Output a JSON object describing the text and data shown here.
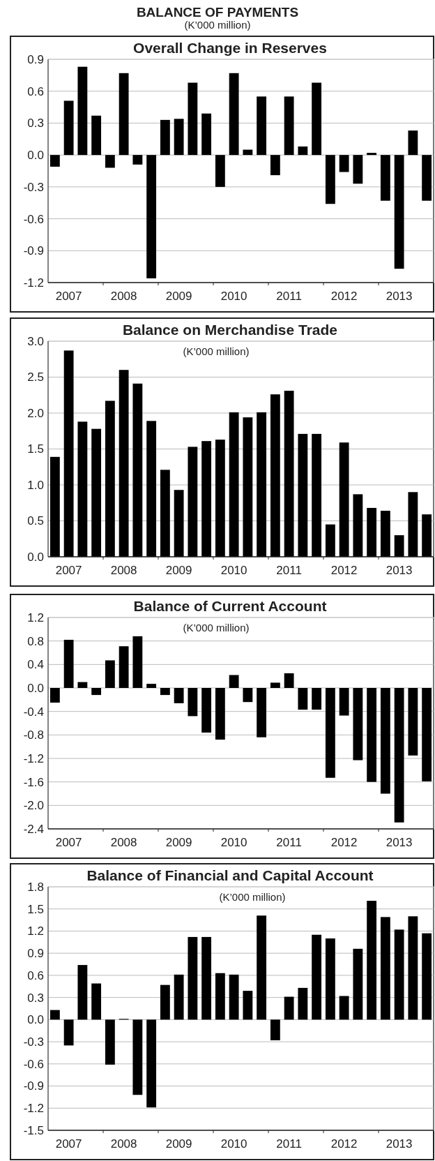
{
  "chart_data": [
    {
      "type": "bar",
      "title": "Overall Change in Reserves",
      "annotations": [
        "BALANCE OF PAYMENTS",
        "(K’000 million)"
      ],
      "categories": [
        null,
        "2007",
        null,
        null,
        null,
        "2008",
        null,
        null,
        null,
        "2009",
        null,
        null,
        null,
        "2010",
        null,
        null,
        null,
        "2011",
        null,
        null,
        null,
        "2012",
        null,
        null,
        null,
        "2013",
        null,
        null
      ],
      "values": [
        -0.11,
        0.51,
        0.83,
        0.37,
        -0.12,
        0.77,
        -0.09,
        -1.16,
        0.33,
        0.34,
        0.68,
        0.39,
        -0.3,
        0.77,
        0.05,
        0.55,
        -0.19,
        0.55,
        0.08,
        0.68,
        -0.46,
        -0.16,
        -0.27,
        0.02,
        -0.43,
        -1.07,
        0.23,
        -0.43
      ],
      "color": "#000000",
      "ylim": [
        -1.2,
        0.9
      ],
      "yticks": [
        -1.2,
        -0.9,
        -0.6,
        -0.3,
        {
          "value": 0,
          "label": "0.0"
        },
        0.3,
        0.6,
        0.9
      ],
      "grid": "y"
    },
    {
      "type": "bar",
      "title": "Balance on Merchandise Trade",
      "subtitle": "(K’000 million)",
      "categories": [
        null,
        "2007",
        null,
        null,
        null,
        "2008",
        null,
        null,
        null,
        "2009",
        null,
        null,
        null,
        "2010",
        null,
        null,
        null,
        "2011",
        null,
        null,
        null,
        "2012",
        null,
        null,
        null,
        "2013",
        null,
        null
      ],
      "values": [
        1.39,
        2.87,
        1.88,
        1.78,
        2.17,
        2.6,
        2.41,
        1.89,
        1.21,
        0.93,
        1.53,
        1.61,
        1.63,
        2.01,
        1.94,
        2.01,
        2.26,
        2.31,
        1.71,
        1.71,
        0.45,
        1.59,
        0.87,
        0.68,
        0.64,
        0.3,
        0.9,
        0.59
      ],
      "color": "#000000",
      "ylim": [
        0,
        3
      ],
      "yticks": [
        {
          "value": 0,
          "label": "0.0"
        },
        0.5,
        {
          "value": 1,
          "label": "1.0"
        },
        1.5,
        {
          "value": 2,
          "label": "2.0"
        },
        2.5,
        {
          "value": 3,
          "label": "3.0"
        }
      ],
      "grid": "y"
    },
    {
      "type": "bar",
      "title": "Balance of Current Account",
      "subtitle": "(K’000 million)",
      "categories": [
        null,
        "2007",
        null,
        null,
        null,
        "2008",
        null,
        null,
        null,
        "2009",
        null,
        null,
        null,
        "2010",
        null,
        null,
        null,
        "2011",
        null,
        null,
        null,
        "2012",
        null,
        null,
        null,
        "2013",
        null,
        null
      ],
      "values": [
        -0.25,
        0.82,
        0.1,
        -0.12,
        0.47,
        0.71,
        0.88,
        0.07,
        -0.12,
        -0.26,
        -0.48,
        -0.76,
        -0.88,
        0.22,
        -0.24,
        -0.84,
        0.09,
        0.25,
        -0.37,
        -0.37,
        -1.53,
        -0.47,
        -1.23,
        -1.6,
        -1.8,
        -2.29,
        -1.15,
        -1.59
      ],
      "color": "#000000",
      "ylim": [
        -2.4,
        1.2
      ],
      "yticks": [
        -2.4,
        {
          "value": -2,
          "label": "-2.0"
        },
        -1.6,
        -1.2,
        -0.8,
        -0.4,
        {
          "value": 0,
          "label": "0.0"
        },
        0.4,
        0.8,
        1.2
      ],
      "grid": "y"
    },
    {
      "type": "bar",
      "title": "Balance of Financial and Capital Account",
      "subtitle": "(K’000 million)",
      "categories": [
        null,
        "2007",
        null,
        null,
        null,
        "2008",
        null,
        null,
        null,
        "2009",
        null,
        null,
        null,
        "2010",
        null,
        null,
        null,
        "2011",
        null,
        null,
        null,
        "2012",
        null,
        null,
        null,
        "2013",
        null,
        null
      ],
      "values": [
        0.13,
        -0.35,
        0.74,
        0.49,
        -0.61,
        0.01,
        -1.02,
        -1.19,
        0.47,
        0.61,
        1.12,
        1.12,
        0.63,
        0.61,
        0.39,
        1.41,
        -0.28,
        0.31,
        0.43,
        1.15,
        1.1,
        0.32,
        0.96,
        1.61,
        1.39,
        1.22,
        1.4,
        1.17
      ],
      "color": "#000000",
      "ylim": [
        -1.5,
        1.8
      ],
      "yticks": [
        -1.5,
        -1.2,
        -0.9,
        -0.6,
        -0.3,
        {
          "value": 0,
          "label": "0.0"
        },
        0.3,
        0.6,
        0.9,
        1.2,
        1.5,
        1.8
      ],
      "grid": "y"
    }
  ]
}
